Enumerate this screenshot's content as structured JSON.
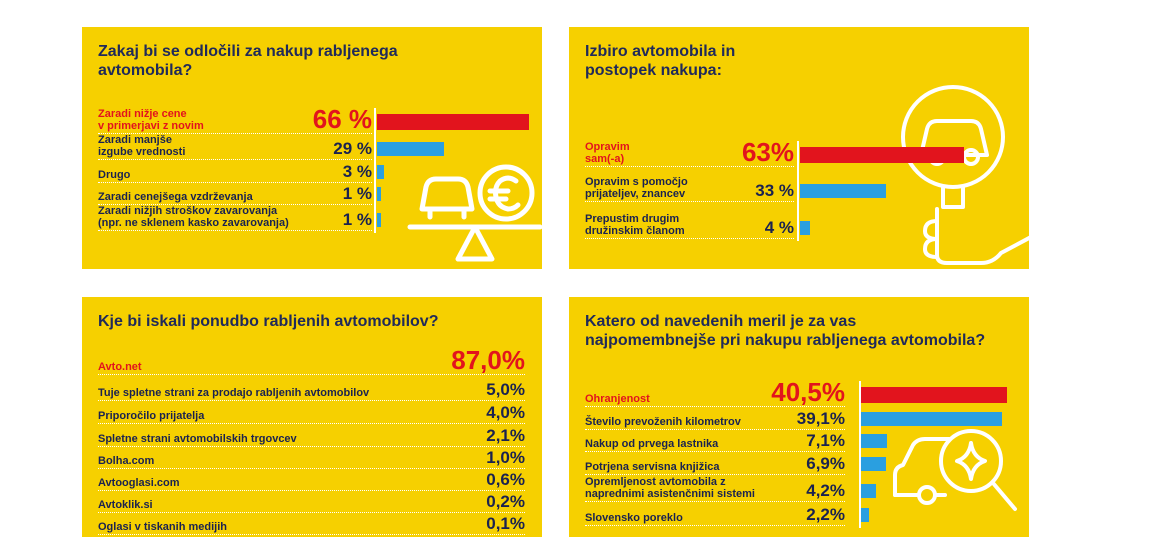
{
  "colors": {
    "panel": "#f6d000",
    "highlight": "#e2141d",
    "bar": "#2a9fe0",
    "text": "#1a2250"
  },
  "chart_data": [
    {
      "type": "bar",
      "title": "Zakaj bi se odločili za nakup rabljenega\navtomobila?",
      "unit": "%",
      "categories": [
        "Zaradi nižje cene\nv primerjavi z novim",
        "Zaradi manjše\nizgube vrednosti",
        "Drugo",
        "Zaradi cenejšega vzdrževanja",
        "Zaradi nižjih stroškov zavarovanja\n(npr. ne sklenem kasko zavarovanja)"
      ],
      "values": [
        66,
        29,
        3,
        1,
        1
      ],
      "value_labels": [
        "66 %",
        "29 %",
        "3 %",
        "1 %",
        "1 %"
      ]
    },
    {
      "type": "bar",
      "title": "Izbiro avtomobila in\npostopek nakupa:",
      "unit": "%",
      "categories": [
        "Opravim\nsam(-a)",
        "Opravim s pomočjo\nprijateljev, znancev",
        "Prepustim drugim\ndružinskim članom"
      ],
      "values": [
        63,
        33,
        4
      ],
      "value_labels": [
        "63%",
        "33 %",
        "4 %"
      ]
    },
    {
      "type": "table",
      "title": "Kje bi iskali ponudbo rabljenih avtomobilov?",
      "unit": "%",
      "categories": [
        "Avto.net",
        "Tuje spletne strani za prodajo rabljenih avtomobilov",
        "Priporočilo prijatelja",
        "Spletne strani avtomobilskih trgovcev",
        "Bolha.com",
        "Avtooglasi.com",
        "Avtoklik.si",
        "Oglasi v tiskanih medijih"
      ],
      "values": [
        87.0,
        5.0,
        4.0,
        2.1,
        1.0,
        0.6,
        0.2,
        0.1
      ],
      "value_labels": [
        "87,0%",
        "5,0%",
        "4,0%",
        "2,1%",
        "1,0%",
        "0,6%",
        "0,2%",
        "0,1%"
      ]
    },
    {
      "type": "bar",
      "title": "Katero od navedenih meril je za vas\nnajpomembnejše pri nakupu rabljenega avtomobila?",
      "unit": "%",
      "categories": [
        "Ohranjenost",
        "Število prevoženih kilometrov",
        "Nakup od prvega lastnika",
        "Potrjena servisna knjižica",
        "Opremljenost avtomobila z\nnaprednimi asistenčnimi sistemi",
        "Slovensko poreklo"
      ],
      "values": [
        40.5,
        39.1,
        7.1,
        6.9,
        4.2,
        2.2
      ],
      "value_labels": [
        "40,5%",
        "39,1%",
        "7,1%",
        "6,9%",
        "4,2%",
        "2,2%"
      ]
    }
  ]
}
